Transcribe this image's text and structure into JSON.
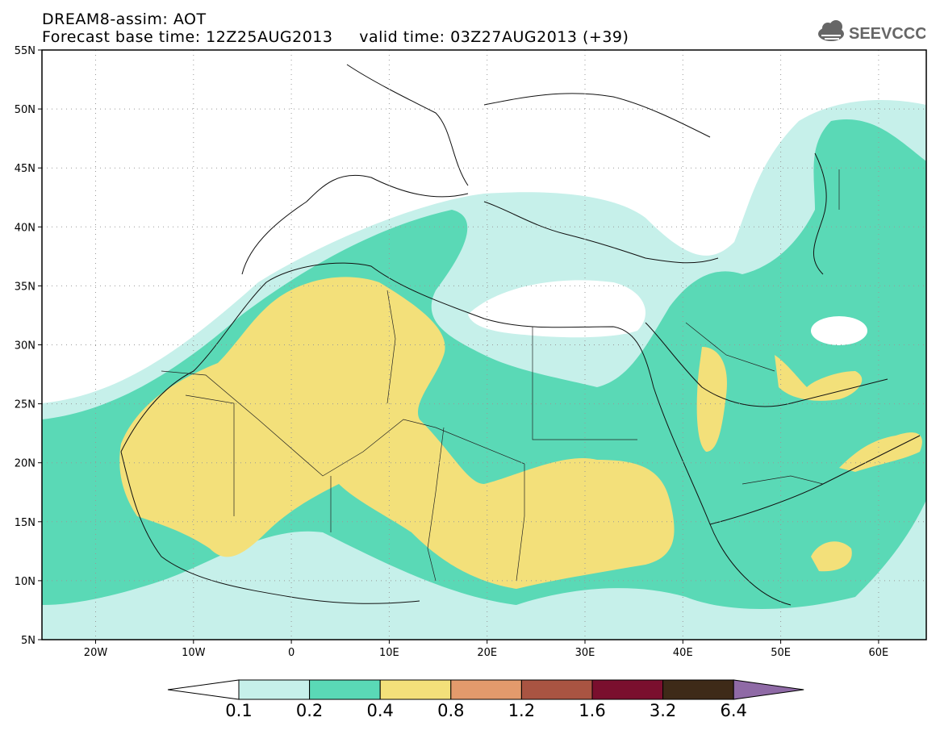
{
  "header": {
    "title": "DREAM8-assim: AOT",
    "base_label": "Forecast base time: 12Z25AUG2013",
    "valid_label": "valid time: 03Z27AUG2013 (+39)"
  },
  "logo": {
    "text": "SEEVCCC",
    "icon": "cloud-icon"
  },
  "map": {
    "lat_labels": [
      "55N",
      "50N",
      "45N",
      "40N",
      "35N",
      "30N",
      "25N",
      "20N",
      "15N",
      "10N",
      "5N"
    ],
    "lon_labels": [
      "20W",
      "10W",
      "0",
      "10E",
      "20E",
      "30E",
      "40E",
      "50E",
      "60E"
    ]
  },
  "colorbar": {
    "labels": [
      "0.1",
      "0.2",
      "0.4",
      "0.8",
      "1.2",
      "1.6",
      "3.2",
      "6.4"
    ],
    "colors": [
      "#c6f0ea",
      "#5ad9b6",
      "#f3e07a",
      "#e39a6c",
      "#a95442",
      "#7a0f2e",
      "#3e2a18"
    ],
    "arrow_left_color": "#ffffff",
    "arrow_right_color": "#8f6aa6"
  }
}
